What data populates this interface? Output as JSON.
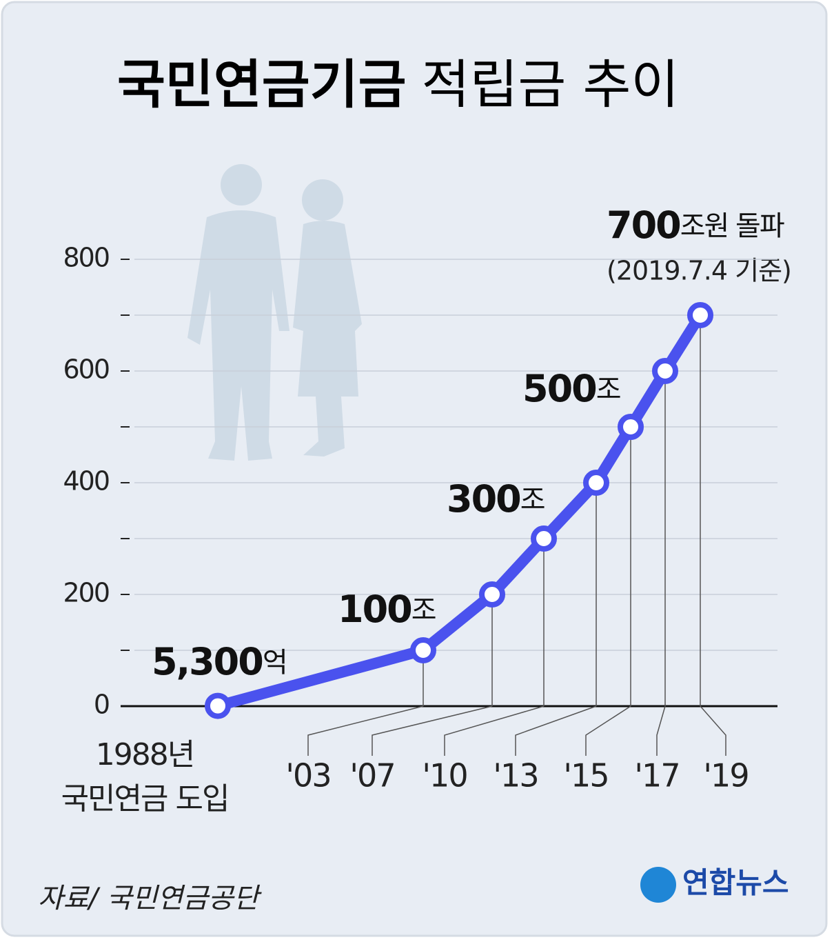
{
  "chart_data": {
    "type": "line",
    "title": {
      "bold": "국민연금기금",
      "rest": "적립금 추이"
    },
    "categories": [
      "1988년\n국민연금 도입",
      "'03",
      "'07",
      "'10",
      "'13",
      "'15",
      "'17",
      "'19"
    ],
    "series": [
      {
        "name": "적립금",
        "color": "#4a52ee",
        "values": [
          0.53,
          100,
          200,
          300,
          400,
          500,
          600,
          700
        ],
        "value_labels": [
          "5,300억",
          "100조",
          null,
          "300조",
          null,
          "500조",
          null,
          "700조원 돌파"
        ]
      }
    ],
    "annotation": "(2019.7.4 기준)",
    "ylim": [
      0,
      800
    ],
    "yticks": [
      0,
      200,
      400,
      600,
      800
    ],
    "yminor": [
      100,
      300,
      500,
      700
    ],
    "grid": true,
    "source": "자료/ 국민연금공단",
    "logo": "연합뉴스"
  }
}
